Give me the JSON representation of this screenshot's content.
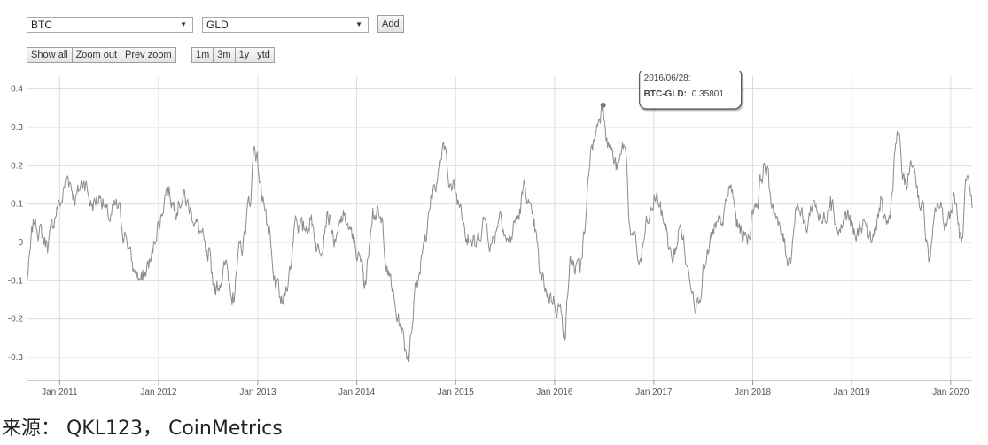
{
  "controls": {
    "select_a": {
      "value": "BTC"
    },
    "select_b": {
      "value": "GLD"
    },
    "add_label": "Add",
    "zoom_buttons": [
      "Show all",
      "Zoom out",
      "Prev zoom"
    ],
    "range_buttons": [
      "1m",
      "3m",
      "1y",
      "ytd"
    ]
  },
  "chart_data": {
    "type": "line",
    "title": "",
    "xlabel": "",
    "ylabel": "",
    "x_ticks": [
      "Jan 2011",
      "Jan 2012",
      "Jan 2013",
      "Jan 2014",
      "Jan 2015",
      "Jan 2016",
      "Jan 2017",
      "Jan 2018",
      "Jan 2019",
      "Jan 2020"
    ],
    "y_ticks": [
      "0.4",
      "0.3",
      "0.2",
      "0.1",
      "0",
      "-0.1",
      "-0.2",
      "-0.3"
    ],
    "xlim": [
      "2010-09-01",
      "2020-03-20"
    ],
    "ylim": [
      -0.36,
      0.42
    ],
    "grid": true,
    "series": [
      {
        "color": "#8c8c8c",
        "points": [
          [
            "2010-09-01",
            -0.09
          ],
          [
            "2010-10-01",
            0.05
          ],
          [
            "2010-11-15",
            0.0
          ],
          [
            "2011-01-01",
            0.1
          ],
          [
            "2011-02-01",
            0.17
          ],
          [
            "2011-03-01",
            0.12
          ],
          [
            "2011-04-01",
            0.16
          ],
          [
            "2011-05-01",
            0.1
          ],
          [
            "2011-06-01",
            0.12
          ],
          [
            "2011-07-01",
            0.06
          ],
          [
            "2011-08-01",
            0.09
          ],
          [
            "2011-09-01",
            0.02
          ],
          [
            "2011-10-01",
            -0.07
          ],
          [
            "2011-11-01",
            -0.1
          ],
          [
            "2011-12-01",
            -0.05
          ],
          [
            "2012-01-01",
            0.05
          ],
          [
            "2012-02-01",
            0.14
          ],
          [
            "2012-03-01",
            0.1
          ],
          [
            "2012-04-01",
            0.12
          ],
          [
            "2012-05-01",
            0.08
          ],
          [
            "2012-06-01",
            0.03
          ],
          [
            "2012-07-01",
            -0.05
          ],
          [
            "2012-08-01",
            -0.12
          ],
          [
            "2012-09-01",
            -0.06
          ],
          [
            "2012-10-01",
            -0.13
          ],
          [
            "2012-11-01",
            -0.02
          ],
          [
            "2012-12-01",
            0.1
          ],
          [
            "2012-12-20",
            0.25
          ],
          [
            "2013-01-20",
            0.12
          ],
          [
            "2013-02-10",
            0.02
          ],
          [
            "2013-03-01",
            -0.1
          ],
          [
            "2013-04-01",
            -0.16
          ],
          [
            "2013-05-01",
            -0.07
          ],
          [
            "2013-05-20",
            0.07
          ],
          [
            "2013-06-15",
            0.03
          ],
          [
            "2013-07-15",
            0.06
          ],
          [
            "2013-08-15",
            -0.02
          ],
          [
            "2013-09-15",
            0.08
          ],
          [
            "2013-10-15",
            0.0
          ],
          [
            "2013-11-15",
            0.07
          ],
          [
            "2013-12-15",
            0.01
          ],
          [
            "2014-01-15",
            -0.05
          ],
          [
            "2014-02-01",
            -0.1
          ],
          [
            "2014-03-01",
            0.09
          ],
          [
            "2014-04-01",
            0.05
          ],
          [
            "2014-05-01",
            -0.09
          ],
          [
            "2014-06-01",
            -0.2
          ],
          [
            "2014-07-10",
            -0.29
          ],
          [
            "2014-08-10",
            -0.1
          ],
          [
            "2014-09-10",
            0.02
          ],
          [
            "2014-10-15",
            0.15
          ],
          [
            "2014-11-20",
            0.24
          ],
          [
            "2014-12-20",
            0.14
          ],
          [
            "2015-01-20",
            0.1
          ],
          [
            "2015-02-15",
            0.02
          ],
          [
            "2015-03-15",
            -0.01
          ],
          [
            "2015-04-15",
            0.06
          ],
          [
            "2015-05-15",
            0.0
          ],
          [
            "2015-06-15",
            0.08
          ],
          [
            "2015-07-15",
            0.0
          ],
          [
            "2015-08-15",
            0.06
          ],
          [
            "2015-09-15",
            0.14
          ],
          [
            "2015-10-15",
            0.04
          ],
          [
            "2015-11-15",
            -0.1
          ],
          [
            "2015-12-15",
            -0.14
          ],
          [
            "2016-01-15",
            -0.16
          ],
          [
            "2016-02-05",
            -0.23
          ],
          [
            "2016-03-01",
            -0.05
          ],
          [
            "2016-04-01",
            -0.08
          ],
          [
            "2016-04-20",
            0.02
          ],
          [
            "2016-05-15",
            0.25
          ],
          [
            "2016-06-28",
            0.35801
          ],
          [
            "2016-07-20",
            0.25
          ],
          [
            "2016-08-20",
            0.19
          ],
          [
            "2016-09-15",
            0.25
          ],
          [
            "2016-10-10",
            0.02
          ],
          [
            "2016-11-10",
            -0.05
          ],
          [
            "2016-12-10",
            0.05
          ],
          [
            "2017-01-10",
            0.12
          ],
          [
            "2017-02-10",
            0.05
          ],
          [
            "2017-03-10",
            -0.05
          ],
          [
            "2017-04-10",
            0.04
          ],
          [
            "2017-05-10",
            -0.08
          ],
          [
            "2017-06-10",
            -0.15
          ],
          [
            "2017-07-10",
            -0.06
          ],
          [
            "2017-08-10",
            0.02
          ],
          [
            "2017-09-10",
            0.05
          ],
          [
            "2017-10-10",
            0.14
          ],
          [
            "2017-11-10",
            0.04
          ],
          [
            "2017-12-10",
            0.01
          ],
          [
            "2018-01-10",
            0.1
          ],
          [
            "2018-02-15",
            0.2
          ],
          [
            "2018-03-15",
            0.1
          ],
          [
            "2018-04-15",
            0.02
          ],
          [
            "2018-05-15",
            -0.04
          ],
          [
            "2018-06-15",
            0.1
          ],
          [
            "2018-07-15",
            0.04
          ],
          [
            "2018-08-15",
            0.11
          ],
          [
            "2018-09-15",
            0.05
          ],
          [
            "2018-10-15",
            0.12
          ],
          [
            "2018-11-15",
            0.03
          ],
          [
            "2018-12-15",
            0.07
          ],
          [
            "2019-01-15",
            0.01
          ],
          [
            "2019-02-15",
            0.06
          ],
          [
            "2019-03-15",
            0.0
          ],
          [
            "2019-04-15",
            0.08
          ],
          [
            "2019-05-15",
            0.05
          ],
          [
            "2019-06-20",
            0.28
          ],
          [
            "2019-07-15",
            0.15
          ],
          [
            "2019-08-15",
            0.2
          ],
          [
            "2019-09-15",
            0.1
          ],
          [
            "2019-10-15",
            -0.04
          ],
          [
            "2019-11-15",
            0.1
          ],
          [
            "2019-12-15",
            0.05
          ],
          [
            "2020-01-15",
            0.12
          ],
          [
            "2020-02-10",
            0.0
          ],
          [
            "2020-03-01",
            0.17
          ],
          [
            "2020-03-20",
            0.09
          ]
        ]
      }
    ],
    "tooltip": {
      "date": "2016/06/28:",
      "label": "BTC-GLD:",
      "value": "0.35801",
      "x": "2016-06-28",
      "y": 0.35801
    }
  },
  "source_text": "来源：  QKL123，  CoinMetrics"
}
